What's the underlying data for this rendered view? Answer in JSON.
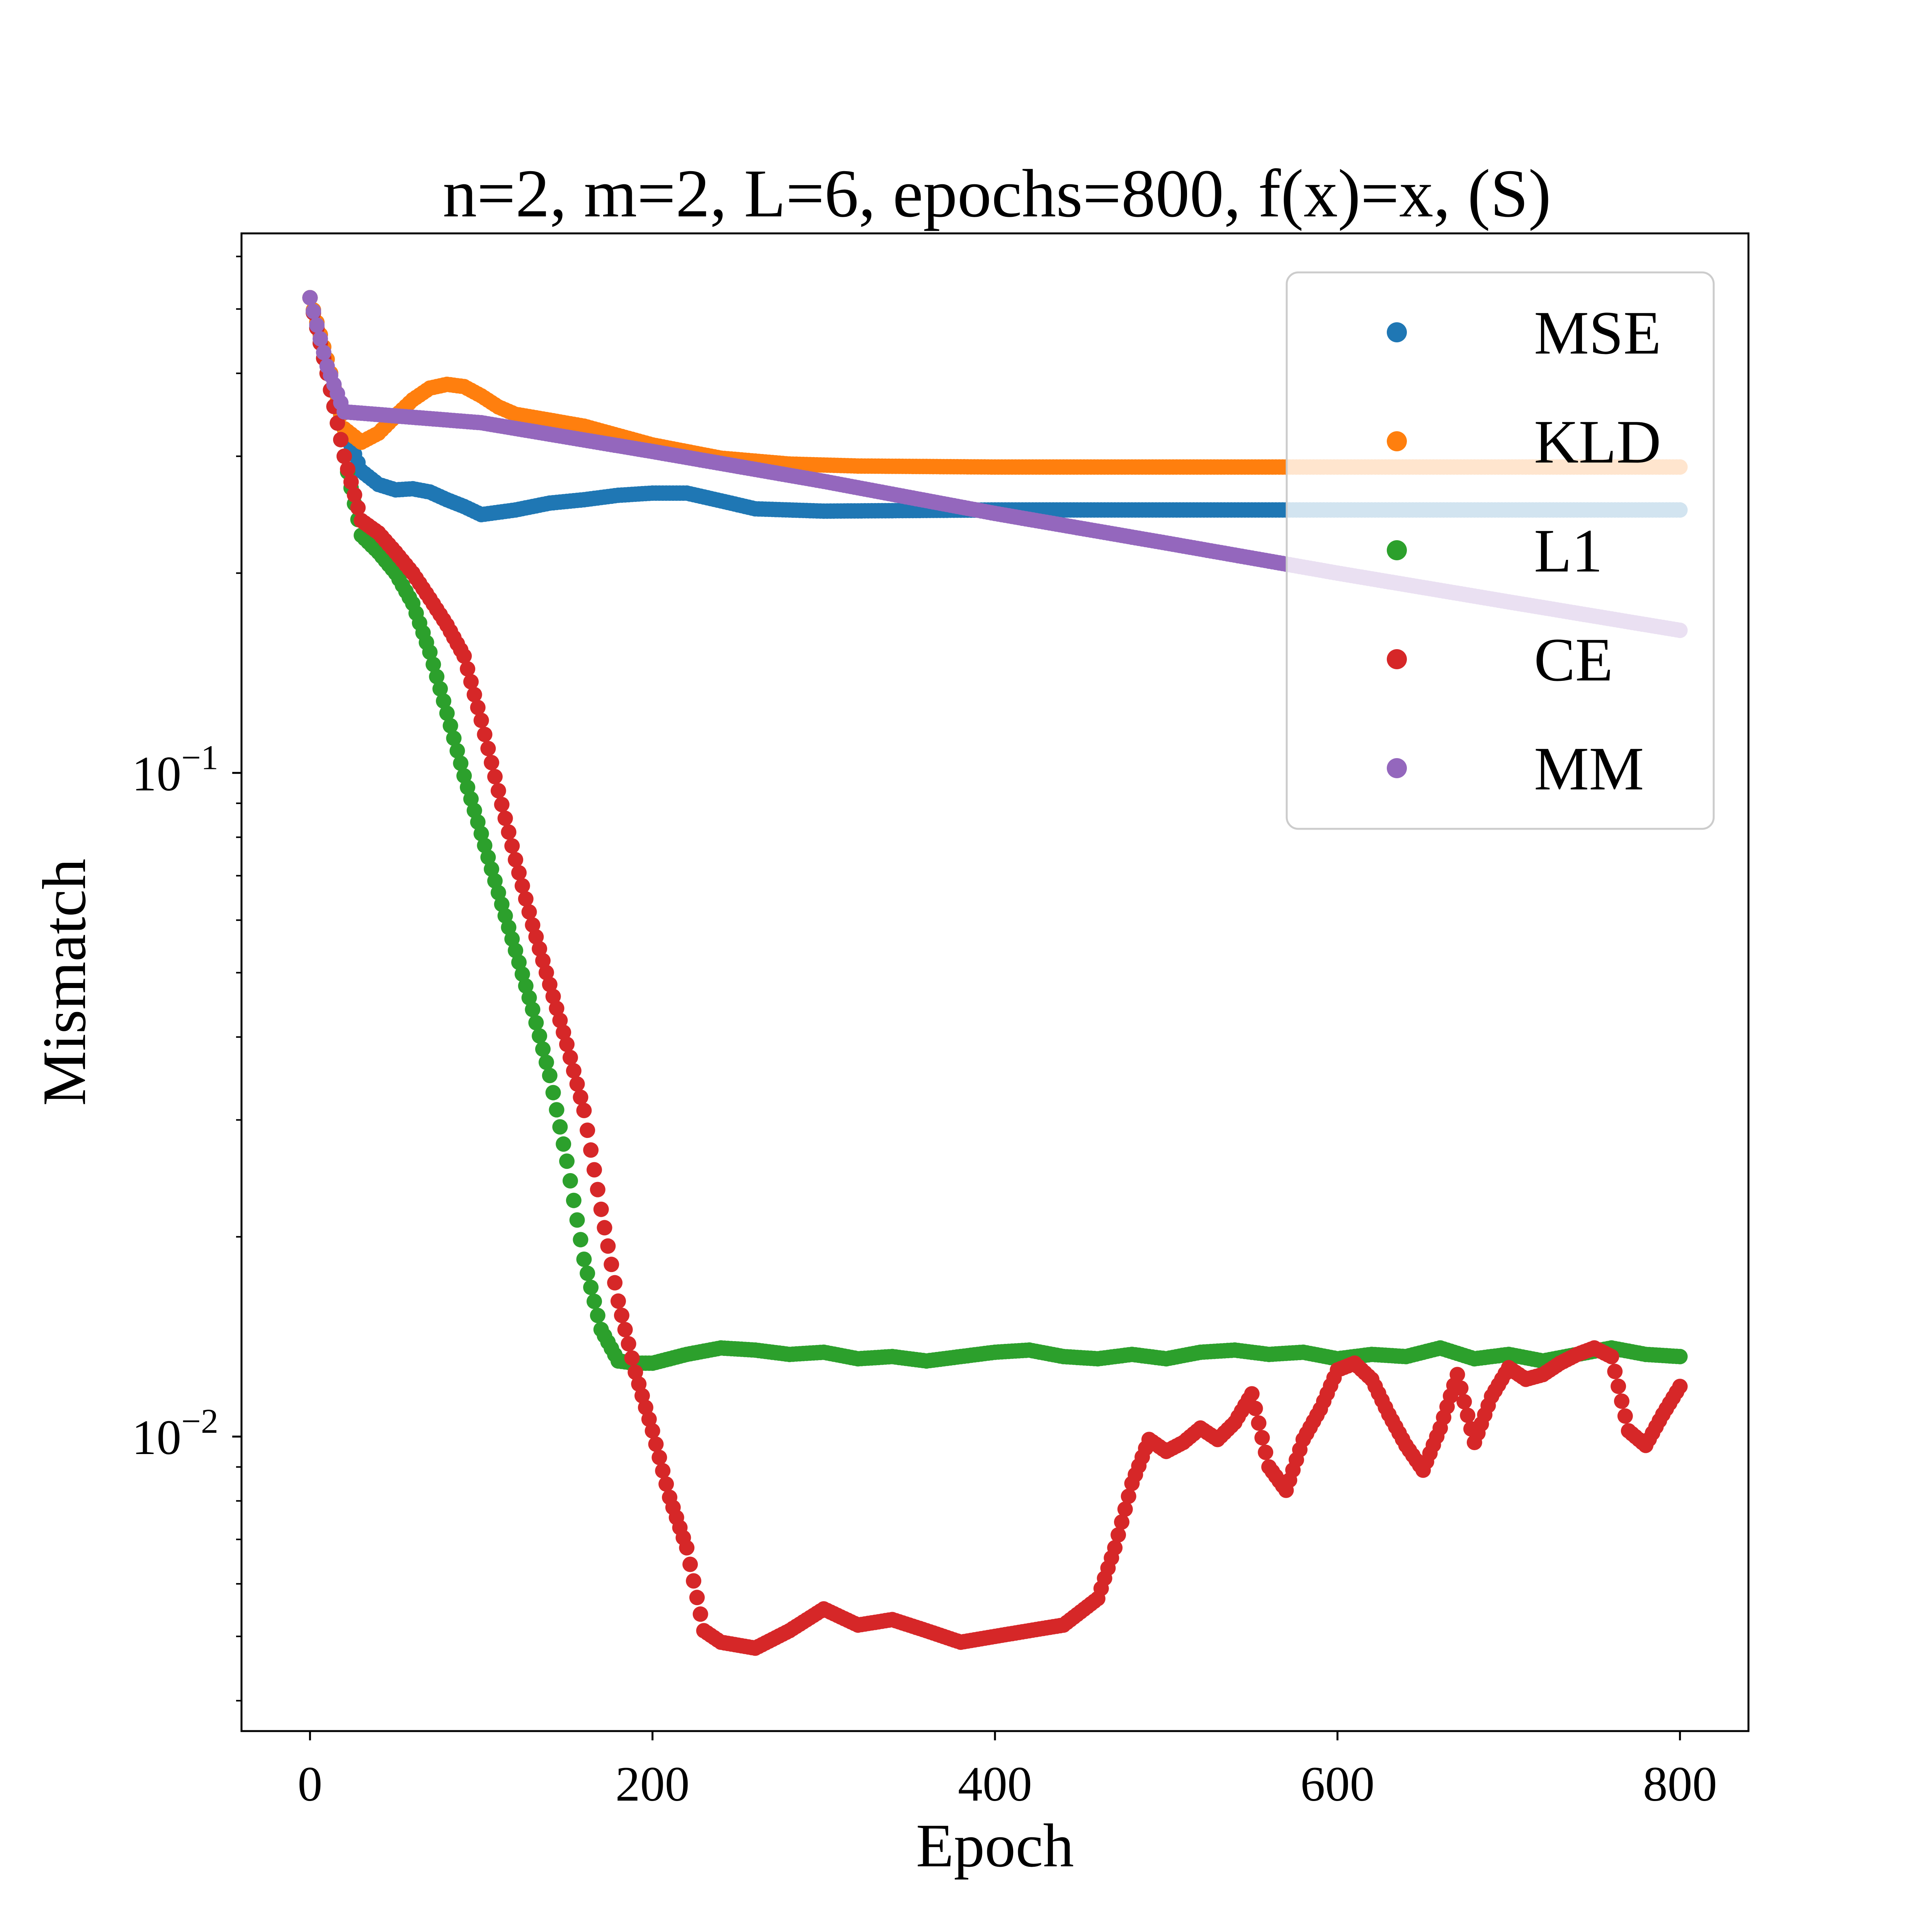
{
  "chart_data": {
    "type": "scatter",
    "title": "n=2, m=2, L=6, epochs=800, f(x)=x, (S)",
    "xlabel": "Epoch",
    "ylabel": "Mismatch",
    "xlim": [
      -40,
      840
    ],
    "ylim": [
      0.0036,
      0.65
    ],
    "yscale": "log",
    "grid": false,
    "legend_position": "top-right",
    "xticks": [
      0,
      200,
      400,
      600,
      800
    ],
    "xtick_labels": [
      "0",
      "200",
      "400",
      "600",
      "800"
    ],
    "yticks": [
      {
        "value": 0.1,
        "base": "10",
        "exponent": "−1"
      },
      {
        "value": 0.01,
        "base": "10",
        "exponent": "−2"
      }
    ],
    "series": [
      {
        "name": "MSE",
        "color": "#1f77b4",
        "points": [
          [
            0,
            0.52
          ],
          [
            10,
            0.42
          ],
          [
            20,
            0.33
          ],
          [
            30,
            0.285
          ],
          [
            40,
            0.272
          ],
          [
            50,
            0.267
          ],
          [
            60,
            0.268
          ],
          [
            70,
            0.265
          ],
          [
            80,
            0.258
          ],
          [
            90,
            0.252
          ],
          [
            100,
            0.245
          ],
          [
            110,
            0.247
          ],
          [
            120,
            0.249
          ],
          [
            140,
            0.255
          ],
          [
            160,
            0.258
          ],
          [
            180,
            0.262
          ],
          [
            200,
            0.264
          ],
          [
            220,
            0.264
          ],
          [
            240,
            0.257
          ],
          [
            260,
            0.25
          ],
          [
            300,
            0.248
          ],
          [
            400,
            0.249
          ],
          [
            500,
            0.249
          ],
          [
            600,
            0.249
          ],
          [
            700,
            0.249
          ],
          [
            800,
            0.249
          ]
        ]
      },
      {
        "name": "KLD",
        "color": "#ff7f0e",
        "points": [
          [
            0,
            0.52
          ],
          [
            10,
            0.42
          ],
          [
            20,
            0.33
          ],
          [
            30,
            0.315
          ],
          [
            40,
            0.325
          ],
          [
            50,
            0.345
          ],
          [
            60,
            0.365
          ],
          [
            70,
            0.38
          ],
          [
            80,
            0.385
          ],
          [
            90,
            0.382
          ],
          [
            100,
            0.37
          ],
          [
            110,
            0.356
          ],
          [
            120,
            0.347
          ],
          [
            140,
            0.34
          ],
          [
            160,
            0.333
          ],
          [
            200,
            0.312
          ],
          [
            240,
            0.298
          ],
          [
            280,
            0.292
          ],
          [
            320,
            0.29
          ],
          [
            400,
            0.289
          ],
          [
            500,
            0.289
          ],
          [
            600,
            0.289
          ],
          [
            700,
            0.289
          ],
          [
            800,
            0.289
          ]
        ]
      },
      {
        "name": "L1",
        "color": "#2ca02c",
        "points": [
          [
            0,
            0.52
          ],
          [
            10,
            0.4
          ],
          [
            20,
            0.3
          ],
          [
            30,
            0.228
          ],
          [
            40,
            0.215
          ],
          [
            50,
            0.2
          ],
          [
            60,
            0.18
          ],
          [
            70,
            0.152
          ],
          [
            80,
            0.123
          ],
          [
            90,
            0.099
          ],
          [
            100,
            0.081
          ],
          [
            110,
            0.066
          ],
          [
            120,
            0.054
          ],
          [
            130,
            0.044
          ],
          [
            140,
            0.035
          ],
          [
            150,
            0.026
          ],
          [
            160,
            0.0185
          ],
          [
            170,
            0.0145
          ],
          [
            180,
            0.013
          ],
          [
            190,
            0.0129
          ],
          [
            200,
            0.0129
          ],
          [
            220,
            0.0133
          ],
          [
            240,
            0.0136
          ],
          [
            260,
            0.0135
          ],
          [
            280,
            0.0133
          ],
          [
            300,
            0.0134
          ],
          [
            320,
            0.0131
          ],
          [
            340,
            0.0132
          ],
          [
            360,
            0.013
          ],
          [
            380,
            0.0132
          ],
          [
            400,
            0.0134
          ],
          [
            420,
            0.0135
          ],
          [
            440,
            0.0132
          ],
          [
            460,
            0.0131
          ],
          [
            480,
            0.0133
          ],
          [
            500,
            0.0131
          ],
          [
            520,
            0.0134
          ],
          [
            540,
            0.0135
          ],
          [
            560,
            0.0133
          ],
          [
            580,
            0.0134
          ],
          [
            600,
            0.0131
          ],
          [
            620,
            0.0133
          ],
          [
            640,
            0.0132
          ],
          [
            660,
            0.0136
          ],
          [
            680,
            0.0131
          ],
          [
            700,
            0.0133
          ],
          [
            720,
            0.013
          ],
          [
            740,
            0.0133
          ],
          [
            760,
            0.0136
          ],
          [
            780,
            0.0133
          ],
          [
            800,
            0.0132
          ]
        ]
      },
      {
        "name": "CE",
        "color": "#d62728",
        "points": [
          [
            0,
            0.52
          ],
          [
            10,
            0.4
          ],
          [
            20,
            0.3
          ],
          [
            30,
            0.24
          ],
          [
            40,
            0.23
          ],
          [
            50,
            0.215
          ],
          [
            60,
            0.2
          ],
          [
            70,
            0.183
          ],
          [
            80,
            0.167
          ],
          [
            90,
            0.15
          ],
          [
            100,
            0.12
          ],
          [
            110,
            0.094
          ],
          [
            120,
            0.074
          ],
          [
            130,
            0.059
          ],
          [
            140,
            0.048
          ],
          [
            150,
            0.039
          ],
          [
            160,
            0.031
          ],
          [
            170,
            0.022
          ],
          [
            180,
            0.016
          ],
          [
            190,
            0.0125
          ],
          [
            200,
            0.0102
          ],
          [
            210,
            0.0081
          ],
          [
            220,
            0.0068
          ],
          [
            230,
            0.0051
          ],
          [
            240,
            0.0049
          ],
          [
            260,
            0.0048
          ],
          [
            280,
            0.0051
          ],
          [
            300,
            0.0055
          ],
          [
            320,
            0.0052
          ],
          [
            340,
            0.0053
          ],
          [
            360,
            0.0051
          ],
          [
            380,
            0.0049
          ],
          [
            400,
            0.005
          ],
          [
            420,
            0.0051
          ],
          [
            440,
            0.0052
          ],
          [
            460,
            0.0057
          ],
          [
            470,
            0.0068
          ],
          [
            480,
            0.0085
          ],
          [
            490,
            0.0099
          ],
          [
            500,
            0.0095
          ],
          [
            510,
            0.0098
          ],
          [
            520,
            0.0103
          ],
          [
            530,
            0.0099
          ],
          [
            540,
            0.0105
          ],
          [
            550,
            0.0116
          ],
          [
            560,
            0.009
          ],
          [
            570,
            0.0083
          ],
          [
            580,
            0.0099
          ],
          [
            590,
            0.011
          ],
          [
            600,
            0.0126
          ],
          [
            610,
            0.0129
          ],
          [
            620,
            0.0122
          ],
          [
            630,
            0.0108
          ],
          [
            640,
            0.0097
          ],
          [
            650,
            0.0089
          ],
          [
            660,
            0.0103
          ],
          [
            670,
            0.0124
          ],
          [
            680,
            0.0098
          ],
          [
            690,
            0.0115
          ],
          [
            700,
            0.0127
          ],
          [
            710,
            0.0122
          ],
          [
            720,
            0.0124
          ],
          [
            730,
            0.0129
          ],
          [
            740,
            0.0133
          ],
          [
            750,
            0.0136
          ],
          [
            760,
            0.0132
          ],
          [
            770,
            0.0102
          ],
          [
            780,
            0.0097
          ],
          [
            790,
            0.0108
          ],
          [
            800,
            0.0119
          ]
        ]
      },
      {
        "name": "MM",
        "color": "#9467bd",
        "points": [
          [
            0,
            0.52
          ],
          [
            10,
            0.41
          ],
          [
            20,
            0.35
          ],
          [
            100,
            0.337
          ],
          [
            200,
            0.305
          ],
          [
            300,
            0.275
          ],
          [
            400,
            0.246
          ],
          [
            500,
            0.222
          ],
          [
            600,
            0.2
          ],
          [
            700,
            0.181
          ],
          [
            800,
            0.164
          ]
        ]
      }
    ]
  }
}
